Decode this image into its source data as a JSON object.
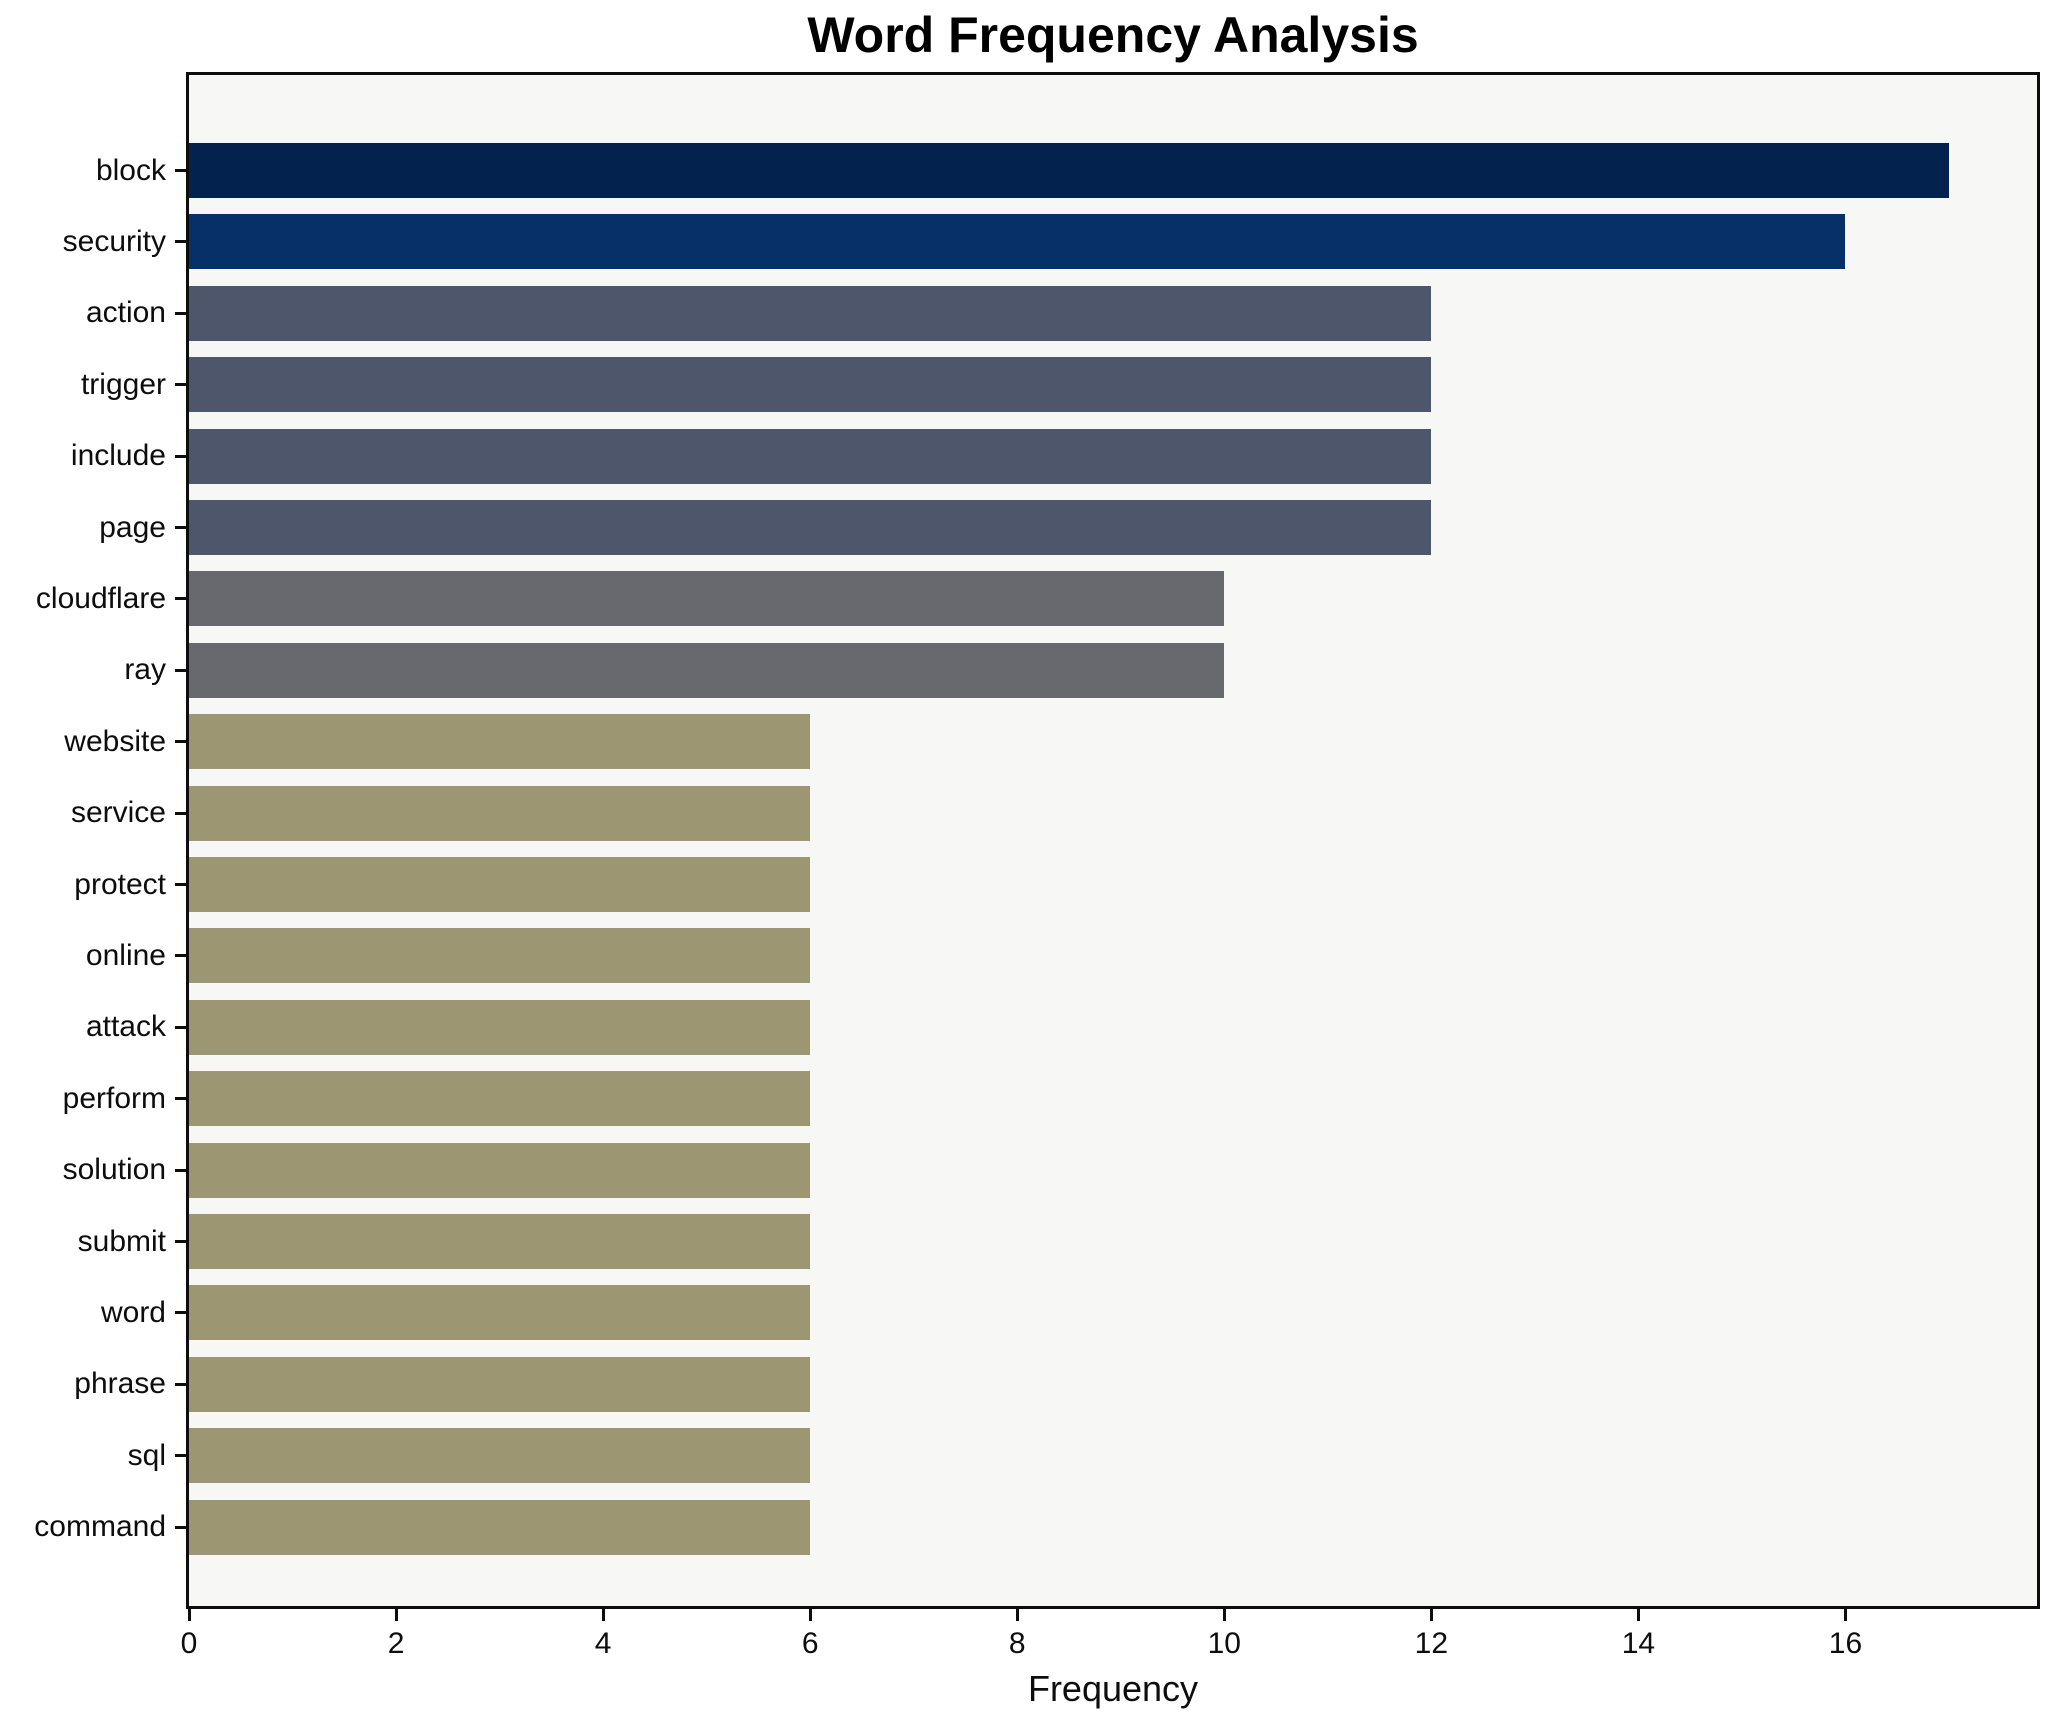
{
  "figure": {
    "title": "Word Frequency Analysis",
    "xlabel": "Frequency"
  },
  "chart_data": {
    "type": "bar",
    "orientation": "horizontal",
    "title": "Word Frequency Analysis",
    "xlabel": "Frequency",
    "ylabel": "",
    "categories": [
      "block",
      "security",
      "action",
      "trigger",
      "include",
      "page",
      "cloudflare",
      "ray",
      "website",
      "service",
      "protect",
      "online",
      "attack",
      "perform",
      "solution",
      "submit",
      "word",
      "phrase",
      "sql",
      "command"
    ],
    "values": [
      17,
      16,
      12,
      12,
      12,
      12,
      10,
      10,
      6,
      6,
      6,
      6,
      6,
      6,
      6,
      6,
      6,
      6,
      6,
      6
    ],
    "bar_colors": [
      "#03224e",
      "#073069",
      "#4e566b",
      "#4e566b",
      "#4e566b",
      "#4e566b",
      "#67696f",
      "#67696f",
      "#9c9772",
      "#9c9772",
      "#9c9772",
      "#9c9772",
      "#9c9772",
      "#9c9772",
      "#9c9772",
      "#9c9772",
      "#9c9772",
      "#9c9772",
      "#9c9772",
      "#9c9772"
    ],
    "x_ticks": [
      0,
      2,
      4,
      6,
      8,
      10,
      12,
      14,
      16
    ],
    "xlim": [
      0,
      17.85
    ],
    "grid": false,
    "legend": null,
    "plot_background": "#f7f7f6",
    "figure_background": "#ffffff",
    "spine_color": "#0d0d0d",
    "text_color": "#0d0d0d"
  }
}
